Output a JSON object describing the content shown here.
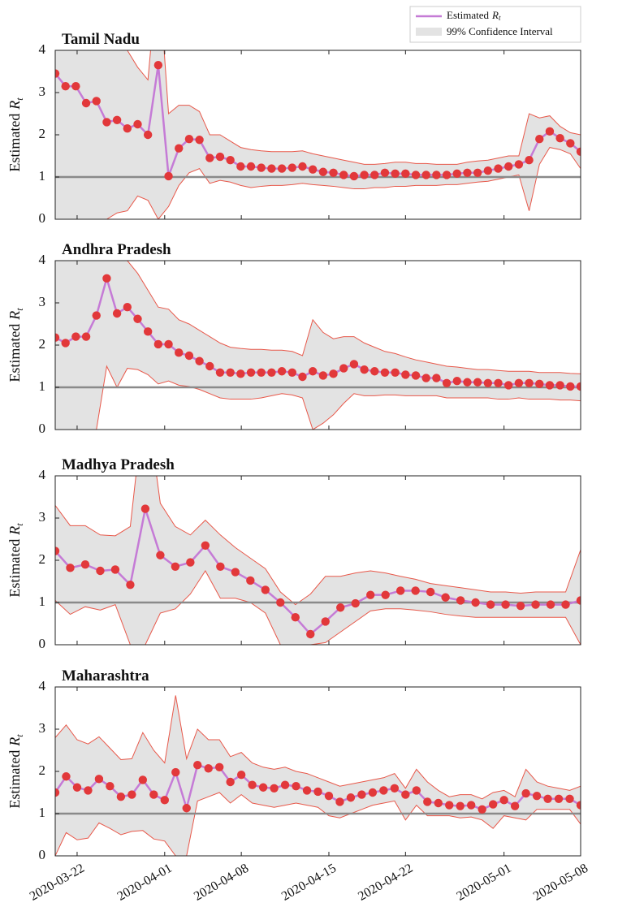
{
  "legend": {
    "line": {
      "text": "Estimated",
      "symbol": "R",
      "sub": "t"
    },
    "band": {
      "text": "99% Confidence Interval"
    }
  },
  "colors": {
    "line": "#c57bd6",
    "marker": "#e2383a",
    "band": "#e3e3e3",
    "band_edge": "#e8584a",
    "reference": "#8a8a8a"
  },
  "chart_data": [
    {
      "type": "line",
      "title": "Tamil Nadu",
      "ylabel": {
        "text": "Estimated",
        "symbol": "R",
        "sub": "t"
      },
      "ylim": [
        0,
        4
      ],
      "yticks": [
        0,
        1,
        2,
        3,
        4
      ],
      "hline": 1,
      "series": [
        {
          "values": [
            3.45,
            3.15,
            3.15,
            2.75,
            2.8,
            2.3,
            2.35,
            2.15,
            2.25,
            2.0,
            3.65,
            1.02,
            1.68,
            1.9,
            1.88,
            1.45,
            1.48,
            1.4,
            1.25,
            1.25,
            1.22,
            1.2,
            1.2,
            1.22,
            1.25,
            1.18,
            1.12,
            1.1,
            1.05,
            1.02,
            1.05,
            1.05,
            1.1,
            1.08,
            1.08,
            1.05,
            1.05,
            1.05,
            1.05,
            1.08,
            1.1,
            1.1,
            1.15,
            1.2,
            1.25,
            1.3,
            1.4,
            1.9,
            2.08,
            1.92,
            1.8,
            1.6
          ],
          "lower": [
            0,
            0,
            0,
            0,
            0,
            0,
            0.15,
            0.2,
            0.55,
            0.45,
            0,
            0.3,
            0.8,
            1.1,
            1.2,
            0.85,
            0.92,
            0.88,
            0.8,
            0.75,
            0.78,
            0.8,
            0.8,
            0.82,
            0.85,
            0.82,
            0.8,
            0.78,
            0.75,
            0.72,
            0.72,
            0.75,
            0.75,
            0.78,
            0.78,
            0.8,
            0.8,
            0.8,
            0.82,
            0.82,
            0.85,
            0.88,
            0.9,
            0.95,
            1.0,
            1.05,
            0.2,
            1.3,
            1.7,
            1.65,
            1.55,
            1.2
          ],
          "upper": [
            5.5,
            5.0,
            4.6,
            4.3,
            4.8,
            4.2,
            4.0,
            4.0,
            3.6,
            3.3,
            6.0,
            2.5,
            2.7,
            2.7,
            2.55,
            2.0,
            2.0,
            1.85,
            1.7,
            1.65,
            1.62,
            1.6,
            1.6,
            1.6,
            1.62,
            1.55,
            1.5,
            1.45,
            1.4,
            1.35,
            1.3,
            1.3,
            1.32,
            1.35,
            1.35,
            1.32,
            1.32,
            1.3,
            1.3,
            1.3,
            1.35,
            1.38,
            1.4,
            1.45,
            1.5,
            1.5,
            2.5,
            2.4,
            2.45,
            2.2,
            2.05,
            2.0
          ]
        }
      ]
    },
    {
      "type": "line",
      "title": "Andhra Pradesh",
      "ylabel": {
        "text": "Estimated",
        "symbol": "R",
        "sub": "t"
      },
      "ylim": [
        0,
        4
      ],
      "yticks": [
        0,
        1,
        2,
        3,
        4
      ],
      "hline": 1,
      "series": [
        {
          "values": [
            2.18,
            2.05,
            2.2,
            2.2,
            2.7,
            3.58,
            2.75,
            2.9,
            2.62,
            2.32,
            2.02,
            2.02,
            1.82,
            1.75,
            1.62,
            1.5,
            1.35,
            1.35,
            1.32,
            1.35,
            1.35,
            1.35,
            1.38,
            1.35,
            1.25,
            1.38,
            1.28,
            1.32,
            1.45,
            1.55,
            1.42,
            1.38,
            1.35,
            1.35,
            1.3,
            1.28,
            1.22,
            1.22,
            1.1,
            1.15,
            1.12,
            1.12,
            1.1,
            1.1,
            1.05,
            1.1,
            1.1,
            1.08,
            1.05,
            1.05,
            1.02,
            1.02
          ],
          "lower": [
            0,
            0,
            0,
            0,
            0,
            1.5,
            1.0,
            1.45,
            1.42,
            1.3,
            1.08,
            1.15,
            1.05,
            1.02,
            0.95,
            0.85,
            0.75,
            0.72,
            0.72,
            0.72,
            0.75,
            0.8,
            0.85,
            0.82,
            0.75,
            0,
            0.15,
            0.35,
            0.62,
            0.85,
            0.8,
            0.8,
            0.82,
            0.82,
            0.8,
            0.8,
            0.8,
            0.8,
            0.75,
            0.75,
            0.75,
            0.75,
            0.75,
            0.72,
            0.72,
            0.75,
            0.72,
            0.72,
            0.72,
            0.7,
            0.7,
            0.68
          ],
          "upper": [
            5,
            5,
            5,
            5,
            4.5,
            4.8,
            4.2,
            4.0,
            3.7,
            3.3,
            2.9,
            2.85,
            2.6,
            2.5,
            2.35,
            2.2,
            2.05,
            1.95,
            1.92,
            1.9,
            1.9,
            1.88,
            1.88,
            1.85,
            1.75,
            2.6,
            2.3,
            2.15,
            2.2,
            2.2,
            2.05,
            1.95,
            1.85,
            1.8,
            1.72,
            1.65,
            1.6,
            1.55,
            1.5,
            1.48,
            1.45,
            1.42,
            1.42,
            1.4,
            1.38,
            1.38,
            1.38,
            1.35,
            1.35,
            1.35,
            1.33,
            1.32
          ]
        }
      ]
    },
    {
      "type": "line",
      "title": "Madhya Pradesh",
      "ylabel": {
        "text": "Estimated",
        "symbol": "R",
        "sub": "t"
      },
      "ylim": [
        0,
        4
      ],
      "yticks": [
        0,
        1,
        2,
        3,
        4
      ],
      "hline": 1,
      "series": [
        {
          "values": [
            2.22,
            1.82,
            1.9,
            1.75,
            1.78,
            1.42,
            3.22,
            2.12,
            1.85,
            1.95,
            2.35,
            1.85,
            1.72,
            1.52,
            1.3,
            1.0,
            0.65,
            0.25,
            0.55,
            0.88,
            0.98,
            1.18,
            1.18,
            1.28,
            1.28,
            1.25,
            1.12,
            1.05,
            1.0,
            0.95,
            0.95,
            0.92,
            0.95,
            0.95,
            0.95,
            1.05
          ],
          "lower": [
            1.05,
            0.72,
            0.9,
            0.82,
            0.95,
            0,
            0,
            0.75,
            0.85,
            1.2,
            1.75,
            1.1,
            1.1,
            1.0,
            0.75,
            0,
            0,
            0,
            0.05,
            0.3,
            0.55,
            0.8,
            0.85,
            0.85,
            0.82,
            0.78,
            0.72,
            0.68,
            0.65,
            0.65,
            0.65,
            0.65,
            0.65,
            0.65,
            0.65,
            0
          ],
          "upper": [
            3.3,
            2.82,
            2.82,
            2.6,
            2.58,
            2.8,
            6,
            3.35,
            2.8,
            2.6,
            2.95,
            2.6,
            2.3,
            2.05,
            1.8,
            1.25,
            0.95,
            1.2,
            1.62,
            1.62,
            1.7,
            1.75,
            1.7,
            1.62,
            1.55,
            1.45,
            1.4,
            1.35,
            1.3,
            1.25,
            1.25,
            1.22,
            1.25,
            1.25,
            1.25,
            2.25
          ]
        }
      ]
    },
    {
      "type": "line",
      "title": "Maharashtra",
      "ylabel": {
        "text": "Estimated",
        "symbol": "R",
        "sub": "t"
      },
      "ylim": [
        0,
        4
      ],
      "yticks": [
        0,
        1,
        2,
        3,
        4
      ],
      "hline": 1,
      "categories": [
        null,
        null,
        "2020-03-22",
        null,
        null,
        null,
        null,
        null,
        null,
        null,
        "2020-04-01",
        null,
        null,
        null,
        null,
        null,
        null,
        "2020-04-08",
        null,
        null,
        null,
        null,
        null,
        null,
        null,
        "2020-04-15",
        null,
        null,
        null,
        null,
        null,
        null,
        "2020-04-22",
        null,
        null,
        null,
        null,
        null,
        null,
        null,
        null,
        "2020-05-01",
        null,
        null,
        null,
        null,
        null,
        null,
        "2020-05-08"
      ],
      "series": [
        {
          "values": [
            1.5,
            1.88,
            1.62,
            1.55,
            1.82,
            1.65,
            1.4,
            1.45,
            1.8,
            1.45,
            1.32,
            1.98,
            1.13,
            2.15,
            2.07,
            2.1,
            1.75,
            1.92,
            1.68,
            1.62,
            1.6,
            1.68,
            1.65,
            1.55,
            1.52,
            1.42,
            1.28,
            1.38,
            1.45,
            1.5,
            1.55,
            1.6,
            1.45,
            1.55,
            1.28,
            1.25,
            1.2,
            1.18,
            1.2,
            1.1,
            1.22,
            1.32,
            1.18,
            1.48,
            1.42,
            1.35,
            1.35,
            1.35,
            1.2
          ],
          "lower": [
            0,
            0.55,
            0.38,
            0.42,
            0.78,
            0.65,
            0.5,
            0.58,
            0.6,
            0.4,
            0.35,
            0,
            0,
            1.3,
            1.4,
            1.5,
            1.25,
            1.45,
            1.25,
            1.2,
            1.15,
            1.2,
            1.25,
            1.2,
            1.15,
            0.95,
            0.9,
            1.0,
            1.1,
            1.2,
            1.25,
            1.3,
            0.85,
            1.2,
            0.95,
            0.95,
            0.95,
            0.9,
            0.92,
            0.85,
            0.65,
            0.95,
            0.9,
            0.85,
            1.1,
            1.1,
            1.1,
            1.1,
            0.75
          ],
          "upper": [
            2.8,
            3.1,
            2.75,
            2.65,
            2.82,
            2.55,
            2.28,
            2.3,
            2.92,
            2.5,
            2.2,
            3.8,
            2.3,
            3.0,
            2.75,
            2.75,
            2.35,
            2.45,
            2.2,
            2.1,
            2.05,
            2.1,
            2.0,
            1.95,
            1.85,
            1.75,
            1.65,
            1.7,
            1.75,
            1.8,
            1.85,
            1.95,
            1.6,
            2.05,
            1.75,
            1.55,
            1.4,
            1.45,
            1.45,
            1.35,
            1.5,
            1.55,
            1.4,
            2.05,
            1.75,
            1.65,
            1.6,
            1.55,
            1.65
          ]
        }
      ]
    }
  ]
}
